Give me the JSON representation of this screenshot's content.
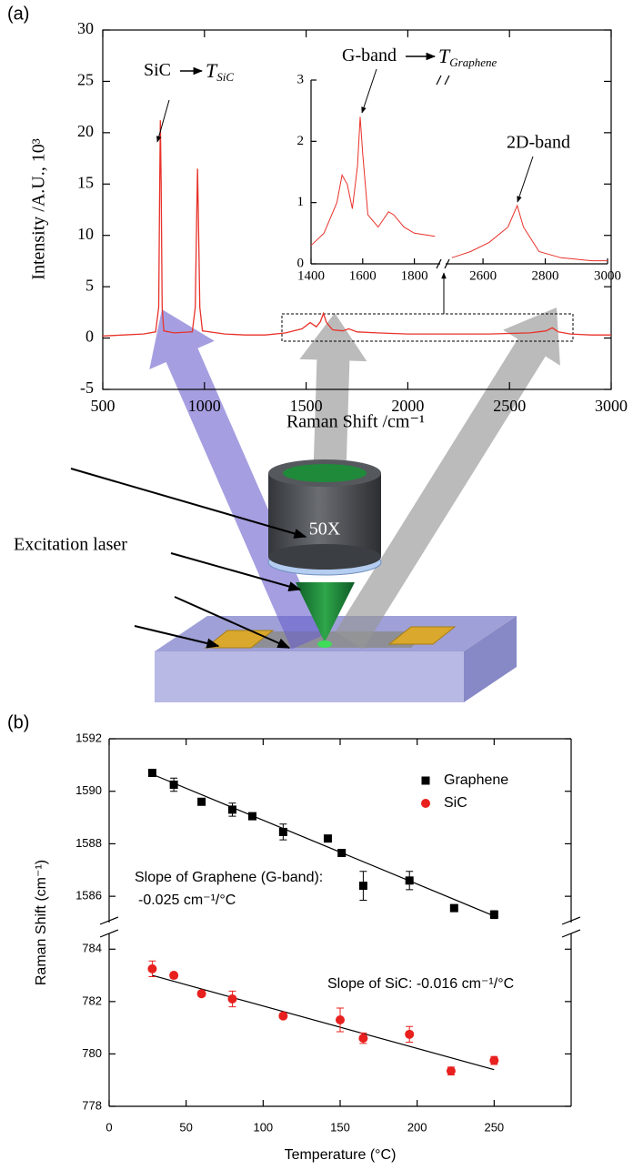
{
  "chart_data": [
    {
      "type": "line",
      "panel_label": "(a)",
      "xlabel": "Raman Shift /cm⁻¹",
      "ylabel": "Intensity /A.U., 10³",
      "xlim": [
        500,
        3000
      ],
      "xticks": [
        500,
        1000,
        1500,
        2000,
        2500,
        3000
      ],
      "ylim": [
        -5,
        30
      ],
      "yticks": [
        -5,
        0,
        5,
        10,
        15,
        20,
        25,
        30
      ],
      "series": [
        {
          "color": "#e8322a",
          "x": [
            500,
            600,
            700,
            760,
            775,
            780,
            783,
            787,
            792,
            800,
            850,
            940,
            955,
            962,
            966,
            970,
            977,
            990,
            1100,
            1200,
            1300,
            1400,
            1480,
            1520,
            1550,
            1570,
            1585,
            1600,
            1630,
            1680,
            1710,
            1750,
            1850,
            2000,
            2200,
            2400,
            2600,
            2680,
            2710,
            2740,
            2800,
            2900,
            3000
          ],
          "values": [
            0.2,
            0.3,
            0.4,
            0.6,
            3,
            15,
            21.2,
            15,
            3,
            0.7,
            0.5,
            0.6,
            3,
            12,
            16.5,
            12,
            3,
            0.7,
            0.4,
            0.3,
            0.3,
            0.5,
            0.9,
            1.5,
            1.1,
            1.6,
            2.4,
            1.5,
            0.8,
            0.7,
            0.9,
            0.6,
            0.5,
            0.4,
            0.4,
            0.4,
            0.5,
            0.7,
            1.0,
            0.6,
            0.4,
            0.3,
            0.3
          ]
        }
      ],
      "annotations": {
        "sic": {
          "text": "SiC",
          "symbol": "T",
          "subscript": "SiC"
        }
      }
    },
    {
      "type": "line",
      "xlim": [
        1400,
        3000
      ],
      "axis_break": [
        1900,
        2480
      ],
      "xticks": [
        1400,
        1600,
        1800,
        2600,
        2800,
        3000
      ],
      "ylim": [
        0,
        3
      ],
      "yticks": [
        0,
        1,
        2,
        3
      ],
      "series": [
        {
          "color": "#e8322a",
          "x": [
            1400,
            1450,
            1500,
            1520,
            1540,
            1560,
            1580,
            1590,
            1600,
            1620,
            1660,
            1700,
            1720,
            1760,
            1800,
            1880,
            1900,
            2500,
            2560,
            2620,
            2680,
            2710,
            2730,
            2780,
            2850,
            2950,
            3000
          ],
          "values": [
            0.3,
            0.5,
            1.0,
            1.45,
            1.3,
            0.9,
            1.6,
            2.4,
            1.8,
            0.8,
            0.6,
            0.85,
            0.8,
            0.6,
            0.5,
            0.45,
            null,
            0.1,
            0.2,
            0.35,
            0.6,
            0.95,
            0.6,
            0.2,
            0.1,
            0.05,
            0.05
          ]
        }
      ],
      "annotations": {
        "g_band": {
          "text": "G-band",
          "symbol": "T",
          "subscript": "Graphene"
        },
        "d_band": "2D-band"
      }
    },
    {
      "type": "scatter",
      "panel_label": "(b)",
      "xlabel": "Temperature (°C)",
      "ylabel": "Raman Shift (cm⁻¹)",
      "xlim": [
        0,
        300
      ],
      "xticks": [
        0,
        50,
        100,
        150,
        200,
        250
      ],
      "y_segments": [
        {
          "ylim": [
            1585,
            1592
          ],
          "yticks": [
            1586,
            1588,
            1590,
            1592
          ]
        },
        {
          "ylim": [
            778,
            784.6
          ],
          "yticks": [
            778,
            780,
            782,
            784
          ]
        }
      ],
      "legend": "upper right",
      "series": [
        {
          "name": "Graphene",
          "color": "#000000",
          "marker": "square",
          "x": [
            28,
            42,
            60,
            80,
            93,
            113,
            142,
            151,
            165,
            195,
            224,
            250
          ],
          "values": [
            1590.7,
            1590.25,
            1589.6,
            1589.3,
            1589.05,
            1588.45,
            1588.2,
            1587.65,
            1586.4,
            1586.6,
            1585.55,
            1585.3
          ],
          "errors": [
            0.05,
            0.25,
            0.05,
            0.25,
            0.05,
            0.3,
            0.05,
            0.05,
            0.55,
            0.35,
            0.05,
            0.15
          ],
          "fit": {
            "x": [
              28,
              250
            ],
            "values": [
              1590.65,
              1585.25
            ]
          }
        },
        {
          "name": "SiC",
          "color": "#e8201e",
          "marker": "circle",
          "x": [
            28,
            42,
            60,
            80,
            113,
            150,
            165,
            195,
            222,
            250
          ],
          "values": [
            783.25,
            783.0,
            782.3,
            782.1,
            781.45,
            781.3,
            780.6,
            780.75,
            779.35,
            779.75
          ],
          "errors": [
            0.3,
            0.1,
            0.1,
            0.3,
            0.1,
            0.45,
            0.2,
            0.3,
            0.15,
            0.15
          ],
          "fit": {
            "x": [
              28,
              250
            ],
            "values": [
              783.0,
              779.4
            ]
          }
        }
      ],
      "annotations": [
        "Slope of Graphene (G-band):",
        "-0.025 cm⁻¹/°C",
        "Slope of SiC: -0.016 cm⁻¹/°C"
      ]
    }
  ],
  "diagram": {
    "labels": {
      "laser": "Excitation laser",
      "objective": "50X"
    }
  }
}
